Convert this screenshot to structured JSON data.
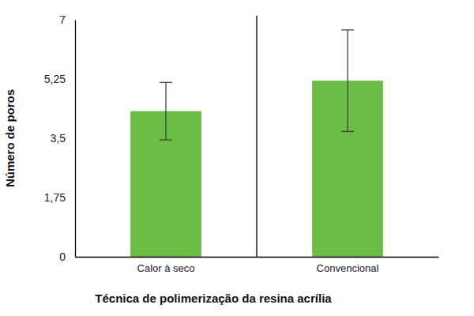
{
  "chart_data": {
    "type": "bar",
    "categories": [
      "Calor à seco",
      "Convencional"
    ],
    "values": [
      4.3,
      5.2
    ],
    "errors": [
      0.85,
      1.5
    ],
    "color": "#6cbd45",
    "x_label": "Técnica de polimerização da resina acrília",
    "y_label": "Número de poros",
    "ylim": [
      0,
      7
    ],
    "yticks": [
      0,
      {
        "value": 1.75,
        "label": "1,75"
      },
      {
        "value": 3.5,
        "label": "3,5"
      },
      {
        "value": 5.25,
        "label": "5,25"
      },
      7
    ],
    "grid": false
  }
}
